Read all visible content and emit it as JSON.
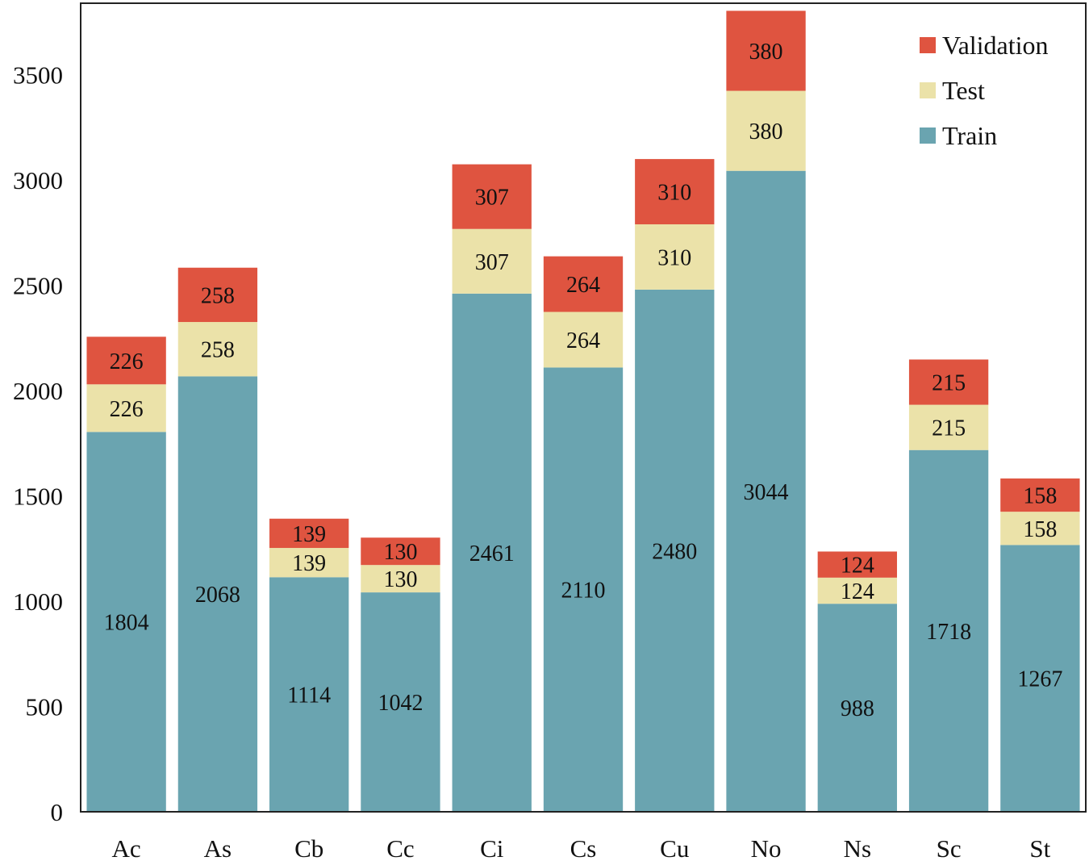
{
  "chart_data": {
    "type": "bar",
    "stacked": true,
    "title": "",
    "xlabel": "",
    "ylabel": "",
    "categories": [
      "Ac",
      "As",
      "Cb",
      "Cc",
      "Ci",
      "Cs",
      "Cu",
      "No",
      "Ns",
      "Sc",
      "St"
    ],
    "series": [
      {
        "name": "Train",
        "color": "#6aa4b0",
        "values": [
          1804,
          2068,
          1114,
          1042,
          2461,
          2110,
          2480,
          3044,
          988,
          1718,
          1267
        ]
      },
      {
        "name": "Test",
        "color": "#ebe2a9",
        "values": [
          226,
          258,
          139,
          130,
          307,
          264,
          310,
          380,
          124,
          215,
          158
        ]
      },
      {
        "name": "Validation",
        "color": "#df5440",
        "values": [
          226,
          258,
          139,
          130,
          307,
          264,
          310,
          380,
          124,
          215,
          158
        ]
      }
    ],
    "legend_order": [
      "Validation",
      "Test",
      "Train"
    ],
    "legend_position": "top-right",
    "ylim": [
      0,
      3840
    ],
    "yticks": [
      0,
      500,
      1000,
      1500,
      2000,
      2500,
      3000,
      3500
    ],
    "grid": false
  }
}
